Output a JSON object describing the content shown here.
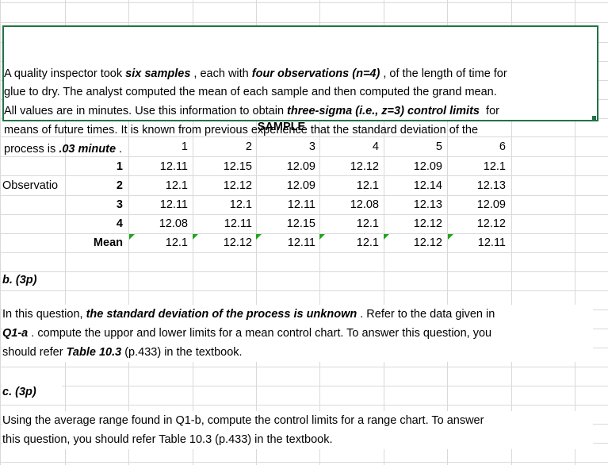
{
  "problem": {
    "lines": [
      [
        {
          "t": "A quality inspector took "
        },
        {
          "t": "six samples",
          "s": "bi"
        },
        {
          "t": " , each with "
        },
        {
          "t": "four observations (n=4)",
          "s": "bi"
        },
        {
          "t": " , of the length of time for"
        }
      ],
      [
        {
          "t": "glue to dry. The analyst computed the mean of each sample and then computed the grand mean."
        }
      ],
      [
        {
          "t": "All values are in minutes. Use this information to obtain "
        },
        {
          "t": "three-sigma (i.e., z=3) control limits",
          "s": "bi"
        },
        {
          "t": "  for"
        }
      ],
      [
        {
          "t": "means of future times. It is known from previous experience that the standard deviation of the"
        }
      ],
      [
        {
          "t": "process is "
        },
        {
          "t": ".03 minute",
          "s": "bi"
        },
        {
          "t": " ."
        }
      ]
    ]
  },
  "table": {
    "sample_header": "SAMPLE",
    "row_group_label": "Observatio",
    "mean_label": "Mean",
    "columns": [
      "1",
      "2",
      "3",
      "4",
      "5",
      "6"
    ],
    "rows": [
      {
        "label": "1",
        "values": [
          "12.11",
          "12.15",
          "12.09",
          "12.12",
          "12.09",
          "12.1"
        ]
      },
      {
        "label": "2",
        "values": [
          "12.1",
          "12.12",
          "12.09",
          "12.1",
          "12.14",
          "12.13"
        ]
      },
      {
        "label": "3",
        "values": [
          "12.11",
          "12.1",
          "12.11",
          "12.08",
          "12.13",
          "12.09"
        ]
      },
      {
        "label": "4",
        "values": [
          "12.08",
          "12.11",
          "12.15",
          "12.1",
          "12.12",
          "12.12"
        ]
      }
    ],
    "means": [
      "12.1",
      "12.12",
      "12.11",
      "12.1",
      "12.12",
      "12.11"
    ]
  },
  "part_b": {
    "heading": "b. (3p)",
    "lines": [
      [
        {
          "t": "In this question, "
        },
        {
          "t": "the standard deviation of the process is unknown",
          "s": "bi"
        },
        {
          "t": " . Refer to the data given in"
        }
      ],
      [
        {
          "t": "Q1-a",
          "s": "bi"
        },
        {
          "t": " . compute the uppor and lower limits for a mean control chart. To answer this question, you"
        }
      ],
      [
        {
          "t": "should refer "
        },
        {
          "t": "Table 10.3",
          "s": "bi"
        },
        {
          "t": "  (p.433) in the textbook."
        }
      ]
    ]
  },
  "part_c": {
    "heading": "c. (3p)",
    "lines": [
      [
        {
          "t": "Using the average range found in Q1-b, compute the control limits for a range chart. To answer"
        }
      ],
      [
        {
          "t": "this question, you should refer Table 10.3 (p.433) in the textbook."
        }
      ]
    ]
  },
  "colors": {
    "gridline": "#d9d9d9",
    "selection_border": "#217346",
    "error_triangle": "#22a31f"
  }
}
